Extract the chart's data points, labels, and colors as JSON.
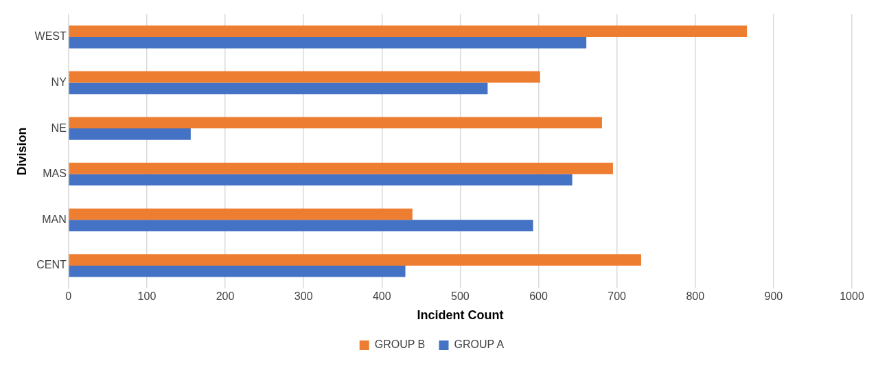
{
  "chart_data": {
    "type": "bar",
    "orientation": "horizontal",
    "xlabel": "Incident Count",
    "ylabel": "Division",
    "categories": [
      "WEST",
      "NY",
      "NE",
      "MAS",
      "MAN",
      "CENT"
    ],
    "series": [
      {
        "name": "GROUP B",
        "color": "#ed7d31",
        "values": [
          866,
          602,
          681,
          695,
          439,
          731
        ]
      },
      {
        "name": "GROUP A",
        "color": "#4472c4",
        "values": [
          661,
          535,
          156,
          643,
          593,
          430
        ]
      }
    ],
    "xlim": [
      0,
      1000
    ],
    "xticks": [
      0,
      100,
      200,
      300,
      400,
      500,
      600,
      700,
      800,
      900,
      1000
    ],
    "grid": "x",
    "legend": "bottom"
  }
}
